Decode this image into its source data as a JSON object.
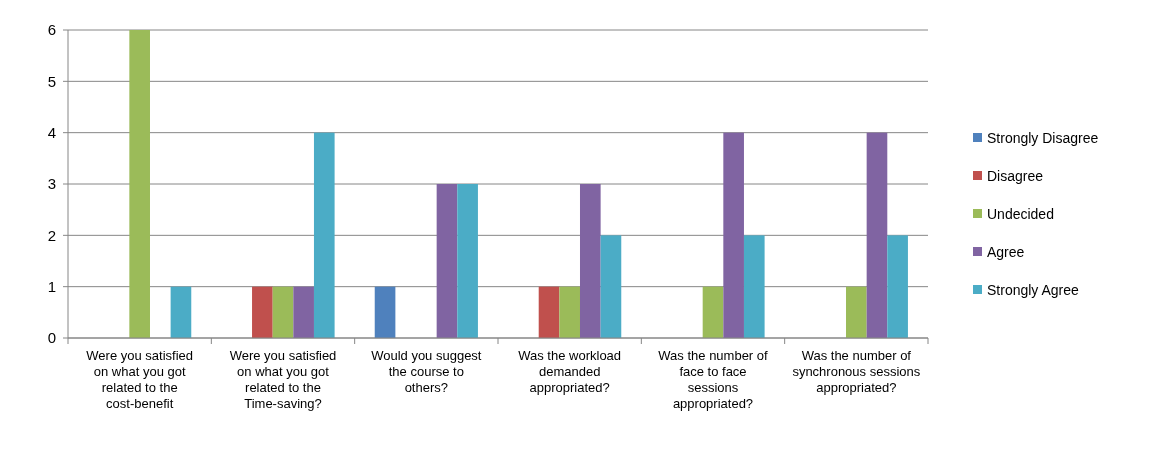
{
  "chart_data": {
    "type": "bar",
    "categories": [
      "Were you satisfied on what you got related to the cost-benefit",
      "Were you satisfied on what you got related to the Time-saving?",
      "Would you suggest the course to others?",
      "Was the workload demanded appropriated?",
      "Was the number of face to face sessions appropriated?",
      "Was the number of synchronous sessions appropriated?"
    ],
    "series": [
      {
        "name": "Strongly Disagree",
        "color": "#4f81bd",
        "values": [
          0,
          0,
          1,
          0,
          0,
          0
        ]
      },
      {
        "name": "Disagree",
        "color": "#c0504d",
        "values": [
          0,
          1,
          0,
          1,
          0,
          0
        ]
      },
      {
        "name": "Undecided",
        "color": "#9bbb59",
        "values": [
          6,
          1,
          0,
          1,
          1,
          1
        ]
      },
      {
        "name": "Agree",
        "color": "#8064a2",
        "values": [
          0,
          1,
          3,
          3,
          4,
          4
        ]
      },
      {
        "name": "Strongly Agree",
        "color": "#4bacc6",
        "values": [
          1,
          4,
          3,
          2,
          2,
          2
        ]
      }
    ],
    "ylim": [
      0,
      6
    ],
    "yticks": [
      0,
      1,
      2,
      3,
      4,
      5,
      6
    ],
    "grid": "y",
    "legend": "right"
  }
}
